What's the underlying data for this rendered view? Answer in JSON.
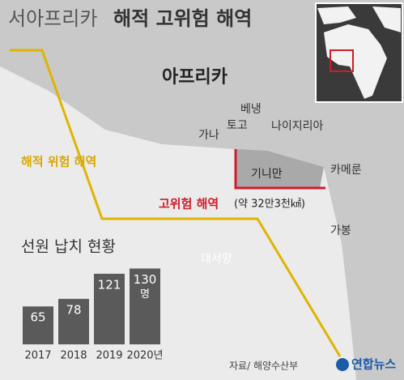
{
  "title": {
    "light": "서아프리카",
    "bold": "해적 고위험 해역"
  },
  "map_labels": {
    "continent": "아프리카",
    "benin": "베냉",
    "togo": "토고",
    "ghana": "가나",
    "nigeria": "나이지리아",
    "cameroon": "카메룬",
    "gulf": "기니만",
    "gabon": "가봉",
    "ocean": "대서양",
    "pirate_zone": "해적 위험 해역",
    "high_risk_zone": "고위험 해역",
    "high_risk_area": "(약 32만3천㎢)"
  },
  "chart_data": {
    "type": "bar",
    "title": "선원 납치 현황",
    "categories": [
      "2017",
      "2018",
      "2019",
      "2020년"
    ],
    "values": [
      65,
      78,
      121,
      130
    ],
    "unit": "명",
    "color": "#5a5a5a"
  },
  "source": "자료/ 해양수산부",
  "logo": "연합뉴스"
}
